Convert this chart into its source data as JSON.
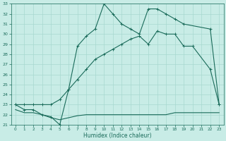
{
  "bg_color": "#c8ece6",
  "line_color": "#1a6b5a",
  "grid_color": "#a8d8d0",
  "xlabel": "Humidex (Indice chaleur)",
  "xlim": [
    -0.5,
    23.5
  ],
  "ylim": [
    21,
    33
  ],
  "xticks": [
    0,
    1,
    2,
    3,
    4,
    5,
    6,
    7,
    8,
    9,
    10,
    11,
    12,
    13,
    14,
    15,
    16,
    17,
    18,
    19,
    20,
    21,
    22,
    23
  ],
  "yticks": [
    21,
    22,
    23,
    24,
    25,
    26,
    27,
    28,
    29,
    30,
    31,
    32,
    33
  ],
  "line1_x": [
    0,
    1,
    2,
    3,
    4,
    5,
    6,
    7,
    8,
    9,
    10,
    11,
    12,
    13,
    14,
    15,
    16,
    17,
    18,
    19,
    20,
    21,
    22,
    23
  ],
  "line1_y": [
    22.5,
    22.2,
    22.2,
    22.0,
    21.7,
    21.5,
    21.7,
    21.9,
    22.0,
    22.0,
    22.0,
    22.0,
    22.0,
    22.0,
    22.0,
    22.0,
    22.0,
    22.0,
    22.2,
    22.2,
    22.2,
    22.2,
    22.2,
    22.2
  ],
  "line2_x": [
    0,
    1,
    2,
    3,
    4,
    5,
    6,
    7,
    8,
    9,
    10,
    11,
    12,
    13,
    14,
    15,
    16,
    17,
    18,
    19,
    20,
    22,
    23
  ],
  "line2_y": [
    23,
    23,
    23,
    23,
    23,
    23.5,
    24.5,
    25.5,
    26.5,
    27.5,
    28,
    28.5,
    29,
    29.5,
    29.8,
    29.0,
    30.3,
    30.0,
    30.0,
    28.8,
    28.8,
    26.5,
    23
  ],
  "line3_x": [
    0,
    1,
    2,
    3,
    4,
    5,
    6,
    7,
    8,
    9,
    10,
    11,
    12,
    13,
    14,
    15,
    16,
    17,
    18,
    19,
    22,
    23
  ],
  "line3_y": [
    23,
    22.5,
    22.5,
    22,
    21.8,
    21,
    24.5,
    28.8,
    29.8,
    30.5,
    33,
    32,
    31,
    30.5,
    30,
    32.5,
    32.5,
    32,
    31.5,
    31,
    30.5,
    23
  ]
}
